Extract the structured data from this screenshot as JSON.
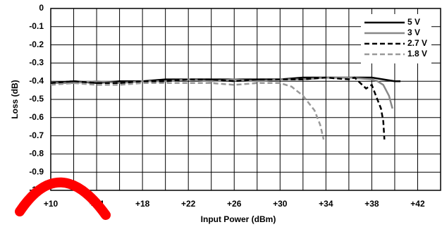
{
  "chart_data": {
    "type": "line",
    "xlabel": "Input Power (dBm)",
    "ylabel": "Loss (dB)",
    "xlim": [
      10,
      44
    ],
    "ylim": [
      -1,
      0
    ],
    "xticks": [
      {
        "value": 10,
        "label": "+10"
      },
      {
        "value": 14,
        "label": "+14"
      },
      {
        "value": 18,
        "label": "+18"
      },
      {
        "value": 22,
        "label": "+22"
      },
      {
        "value": 26,
        "label": "+26"
      },
      {
        "value": 30,
        "label": "+30"
      },
      {
        "value": 34,
        "label": "+34"
      },
      {
        "value": 38,
        "label": "+38"
      },
      {
        "value": 42,
        "label": "+42"
      }
    ],
    "xgrid": [
      12,
      16,
      20,
      24,
      28,
      32,
      36,
      40
    ],
    "yticks": [
      0,
      -0.1,
      -0.2,
      -0.3,
      -0.4,
      -0.5,
      -0.6,
      -0.7,
      -0.8,
      -0.9,
      {
        "value": -1,
        "label": "-1.0"
      }
    ],
    "grid": true,
    "legend": "upper right",
    "series": [
      {
        "name": "5 V",
        "color": "#000000",
        "dashed": false,
        "x": [
          10,
          12,
          14,
          16,
          18,
          20,
          22,
          24,
          26,
          28,
          30,
          32,
          34,
          36,
          38,
          39,
          40,
          40.5
        ],
        "values": [
          -0.41,
          -0.4,
          -0.41,
          -0.4,
          -0.4,
          -0.39,
          -0.39,
          -0.39,
          -0.39,
          -0.39,
          -0.39,
          -0.38,
          -0.38,
          -0.38,
          -0.38,
          -0.39,
          -0.4,
          -0.4
        ]
      },
      {
        "name": "3 V",
        "color": "#888888",
        "dashed": false,
        "x": [
          10,
          12,
          14,
          16,
          18,
          20,
          22,
          24,
          26,
          28,
          30,
          32,
          34,
          36,
          38,
          38.5,
          39,
          39.5,
          39.8
        ],
        "values": [
          -0.41,
          -0.41,
          -0.4,
          -0.41,
          -0.4,
          -0.4,
          -0.39,
          -0.4,
          -0.39,
          -0.4,
          -0.39,
          -0.39,
          -0.38,
          -0.38,
          -0.39,
          -0.4,
          -0.42,
          -0.48,
          -0.55
        ]
      },
      {
        "name": "2.7 V",
        "color": "#000000",
        "dashed": true,
        "x": [
          10,
          12,
          14,
          16,
          18,
          20,
          22,
          24,
          26,
          28,
          30,
          32,
          34,
          36,
          36.5,
          37,
          37.5,
          38,
          38.3,
          38.8,
          39,
          39.1
        ],
        "values": [
          -0.41,
          -0.4,
          -0.41,
          -0.41,
          -0.4,
          -0.4,
          -0.39,
          -0.39,
          -0.4,
          -0.39,
          -0.39,
          -0.39,
          -0.38,
          -0.39,
          -0.38,
          -0.41,
          -0.44,
          -0.42,
          -0.47,
          -0.55,
          -0.62,
          -0.72
        ]
      },
      {
        "name": "1.8 V",
        "color": "#999999",
        "dashed": true,
        "x": [
          10,
          12,
          14,
          16,
          18,
          20,
          22,
          24,
          26,
          28,
          30,
          31,
          32,
          33,
          33.5,
          33.8
        ],
        "values": [
          -0.42,
          -0.41,
          -0.42,
          -0.42,
          -0.41,
          -0.41,
          -0.41,
          -0.41,
          -0.42,
          -0.41,
          -0.41,
          -0.43,
          -0.48,
          -0.56,
          -0.64,
          -0.72
        ]
      }
    ]
  }
}
